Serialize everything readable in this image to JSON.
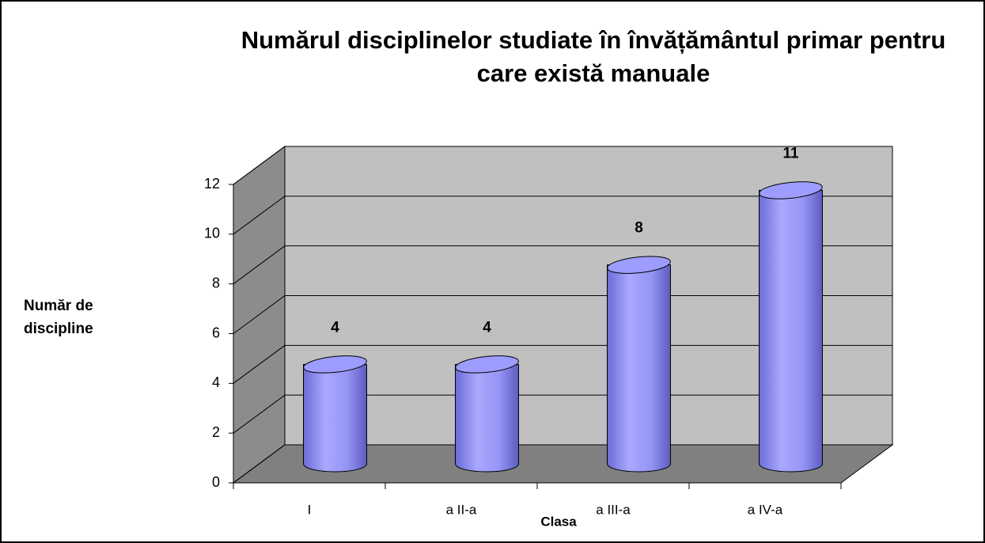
{
  "chart_data": {
    "type": "bar3d",
    "title": "Numărul disciplinelor studiate în învățământul primar pentru care există manuale",
    "categories": [
      "I",
      "a II-a",
      "a III-a",
      "a IV-a"
    ],
    "values": [
      4,
      4,
      8,
      11
    ],
    "color": "#9999ff",
    "x_label": "Clasa",
    "y_label": "Număr de discipline",
    "ylim": [
      0,
      12
    ],
    "yticks": [
      0,
      2,
      4,
      6,
      8,
      10,
      12
    ],
    "grid": true
  }
}
